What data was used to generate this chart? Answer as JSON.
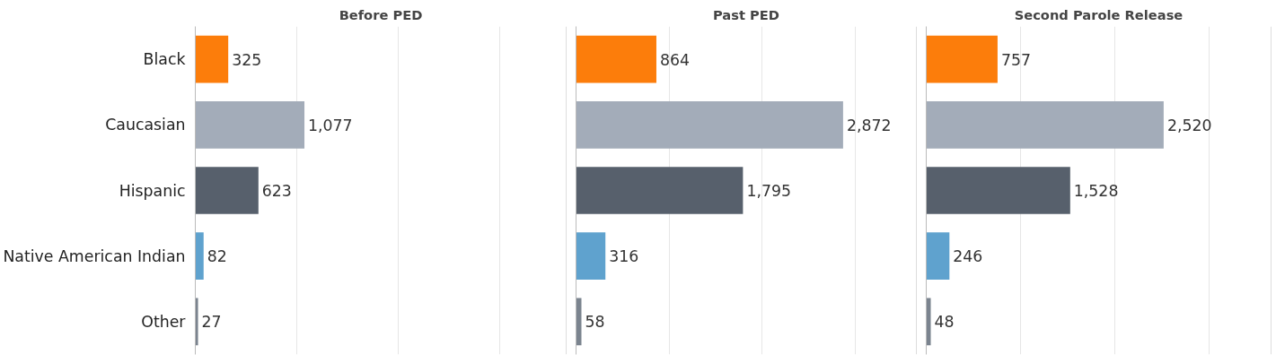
{
  "chart_data": [
    {
      "type": "bar",
      "orientation": "horizontal",
      "title": "Before PED",
      "categories": [
        "Black",
        "Caucasian",
        "Hispanic",
        "Native American Indian",
        "Other"
      ],
      "values": [
        325,
        1077,
        623,
        82,
        27
      ],
      "value_labels": [
        "325",
        "1,077",
        "623",
        "82",
        "27"
      ],
      "colors": [
        "#fc7d0b",
        "#a3acb9",
        "#57606c",
        "#5fa2ce",
        "#7b848f"
      ],
      "xlim": [
        0,
        3660
      ],
      "xticks": [
        {
          "value": 0,
          "label": null
        },
        {
          "value": 1000,
          "label": null
        },
        {
          "value": 2000,
          "label": null
        },
        {
          "value": 3000,
          "label": null
        }
      ],
      "grid": "x",
      "tick_labels": "y"
    },
    {
      "type": "bar",
      "orientation": "horizontal",
      "title": "Past PED",
      "categories": [
        null,
        null,
        null,
        null,
        null
      ],
      "values": [
        864,
        2872,
        1795,
        316,
        58
      ],
      "value_labels": [
        "864",
        "2,872",
        "1,795",
        "316",
        "58"
      ],
      "colors": [
        "#fc7d0b",
        "#a3acb9",
        "#57606c",
        "#5fa2ce",
        "#7b848f"
      ],
      "xlim": [
        0,
        3660
      ],
      "xticks": [
        {
          "value": 0,
          "label": null
        },
        {
          "value": 1000,
          "label": null
        },
        {
          "value": 2000,
          "label": null
        },
        {
          "value": 3000,
          "label": null
        }
      ],
      "grid": "x",
      "tick_labels": false
    },
    {
      "type": "bar",
      "orientation": "horizontal",
      "title": "Second Parole Release",
      "categories": [
        null,
        null,
        null,
        null,
        null
      ],
      "values": [
        757,
        2520,
        1528,
        246,
        48
      ],
      "value_labels": [
        "757",
        "2,520",
        "1,528",
        "246",
        "48"
      ],
      "colors": [
        "#fc7d0b",
        "#a3acb9",
        "#57606c",
        "#5fa2ce",
        "#7b848f"
      ],
      "xlim": [
        0,
        3660
      ],
      "xticks": [
        {
          "value": 0,
          "label": null
        },
        {
          "value": 1000,
          "label": null
        },
        {
          "value": 2000,
          "label": null
        },
        {
          "value": 3000,
          "label": null
        }
      ],
      "grid": "x",
      "tick_labels": false
    }
  ]
}
